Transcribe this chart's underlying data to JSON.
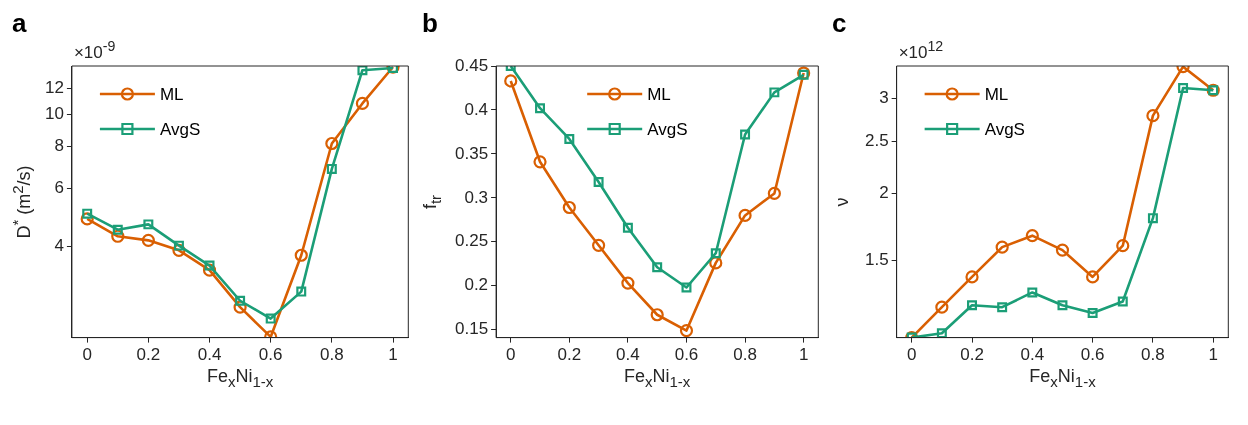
{
  "chart_data": [
    {
      "type": "line",
      "title": "a",
      "xlabel": "Fe$_{x}$Ni$_{1-x}$",
      "ylabel": "D$^{*}$ (m$^{2}$/s)",
      "annotations": [
        "×10$^{-9}$"
      ],
      "log": "y",
      "grid": false,
      "legend": "top left",
      "x": [
        0,
        0.1,
        0.2,
        0.3,
        0.4,
        0.5,
        0.6,
        0.7,
        0.8,
        0.9,
        1
      ],
      "xlim": [
        -0.05,
        1.05
      ],
      "xticks": [
        0,
        0.2,
        0.4,
        0.6,
        0.8,
        1
      ],
      "ylim": [
        2.13,
        14
      ],
      "yticks": [
        4,
        6,
        8,
        10,
        12
      ],
      "series": [
        {
          "name": "ML",
          "color": "#d95f02",
          "marker": "circle",
          "values": [
            4.85,
            4.3,
            4.18,
            3.9,
            3.4,
            2.63,
            2.14,
            3.77,
            8.18,
            10.8,
            13.9
          ]
        },
        {
          "name": "AvgS",
          "color": "#1b9e77",
          "marker": "square",
          "values": [
            5.03,
            4.5,
            4.67,
            4.03,
            3.51,
            2.75,
            2.43,
            2.93,
            6.86,
            13.6,
            13.8
          ]
        }
      ]
    },
    {
      "type": "line",
      "title": "b",
      "xlabel": "Fe$_{x}$Ni$_{1-x}$",
      "ylabel": "f$_{tr}$",
      "grid": false,
      "legend": "top",
      "x": [
        0,
        0.1,
        0.2,
        0.3,
        0.4,
        0.5,
        0.6,
        0.7,
        0.8,
        0.9,
        1
      ],
      "xlim": [
        -0.05,
        1.05
      ],
      "xticks": [
        0,
        0.2,
        0.4,
        0.6,
        0.8,
        1
      ],
      "ylim": [
        0.141,
        0.45
      ],
      "yticks": [
        0.15,
        0.2,
        0.25,
        0.3,
        0.35,
        0.4,
        0.45
      ],
      "series": [
        {
          "name": "ML",
          "color": "#d95f02",
          "marker": "circle",
          "values": [
            0.433,
            0.341,
            0.289,
            0.246,
            0.203,
            0.167,
            0.149,
            0.226,
            0.28,
            0.305,
            0.442
          ]
        },
        {
          "name": "AvgS",
          "color": "#1b9e77",
          "marker": "square",
          "values": [
            0.45,
            0.402,
            0.367,
            0.318,
            0.266,
            0.221,
            0.198,
            0.237,
            0.372,
            0.42,
            0.44
          ]
        }
      ]
    },
    {
      "type": "line",
      "title": "c",
      "xlabel": "Fe$_{x}$Ni$_{1-x}$",
      "ylabel": "ν",
      "annotations": [
        "×10$^{12}$"
      ],
      "log": "y",
      "grid": false,
      "legend": "top left",
      "x": [
        0,
        0.1,
        0.2,
        0.3,
        0.4,
        0.5,
        0.6,
        0.7,
        0.8,
        0.9,
        1
      ],
      "xlim": [
        -0.05,
        1.05
      ],
      "xticks": [
        0,
        0.2,
        0.4,
        0.6,
        0.8,
        1
      ],
      "ylim": [
        1.08,
        3.45
      ],
      "yticks": [
        1.5,
        2,
        2.5,
        3
      ],
      "series": [
        {
          "name": "ML",
          "color": "#d95f02",
          "marker": "circle",
          "values": [
            1.08,
            1.23,
            1.4,
            1.59,
            1.67,
            1.57,
            1.4,
            1.6,
            2.79,
            3.44,
            3.11
          ]
        },
        {
          "name": "AvgS",
          "color": "#1b9e77",
          "marker": "square",
          "values": [
            1.08,
            1.1,
            1.24,
            1.23,
            1.31,
            1.24,
            1.2,
            1.26,
            1.8,
            3.14,
            3.11
          ]
        }
      ]
    }
  ]
}
